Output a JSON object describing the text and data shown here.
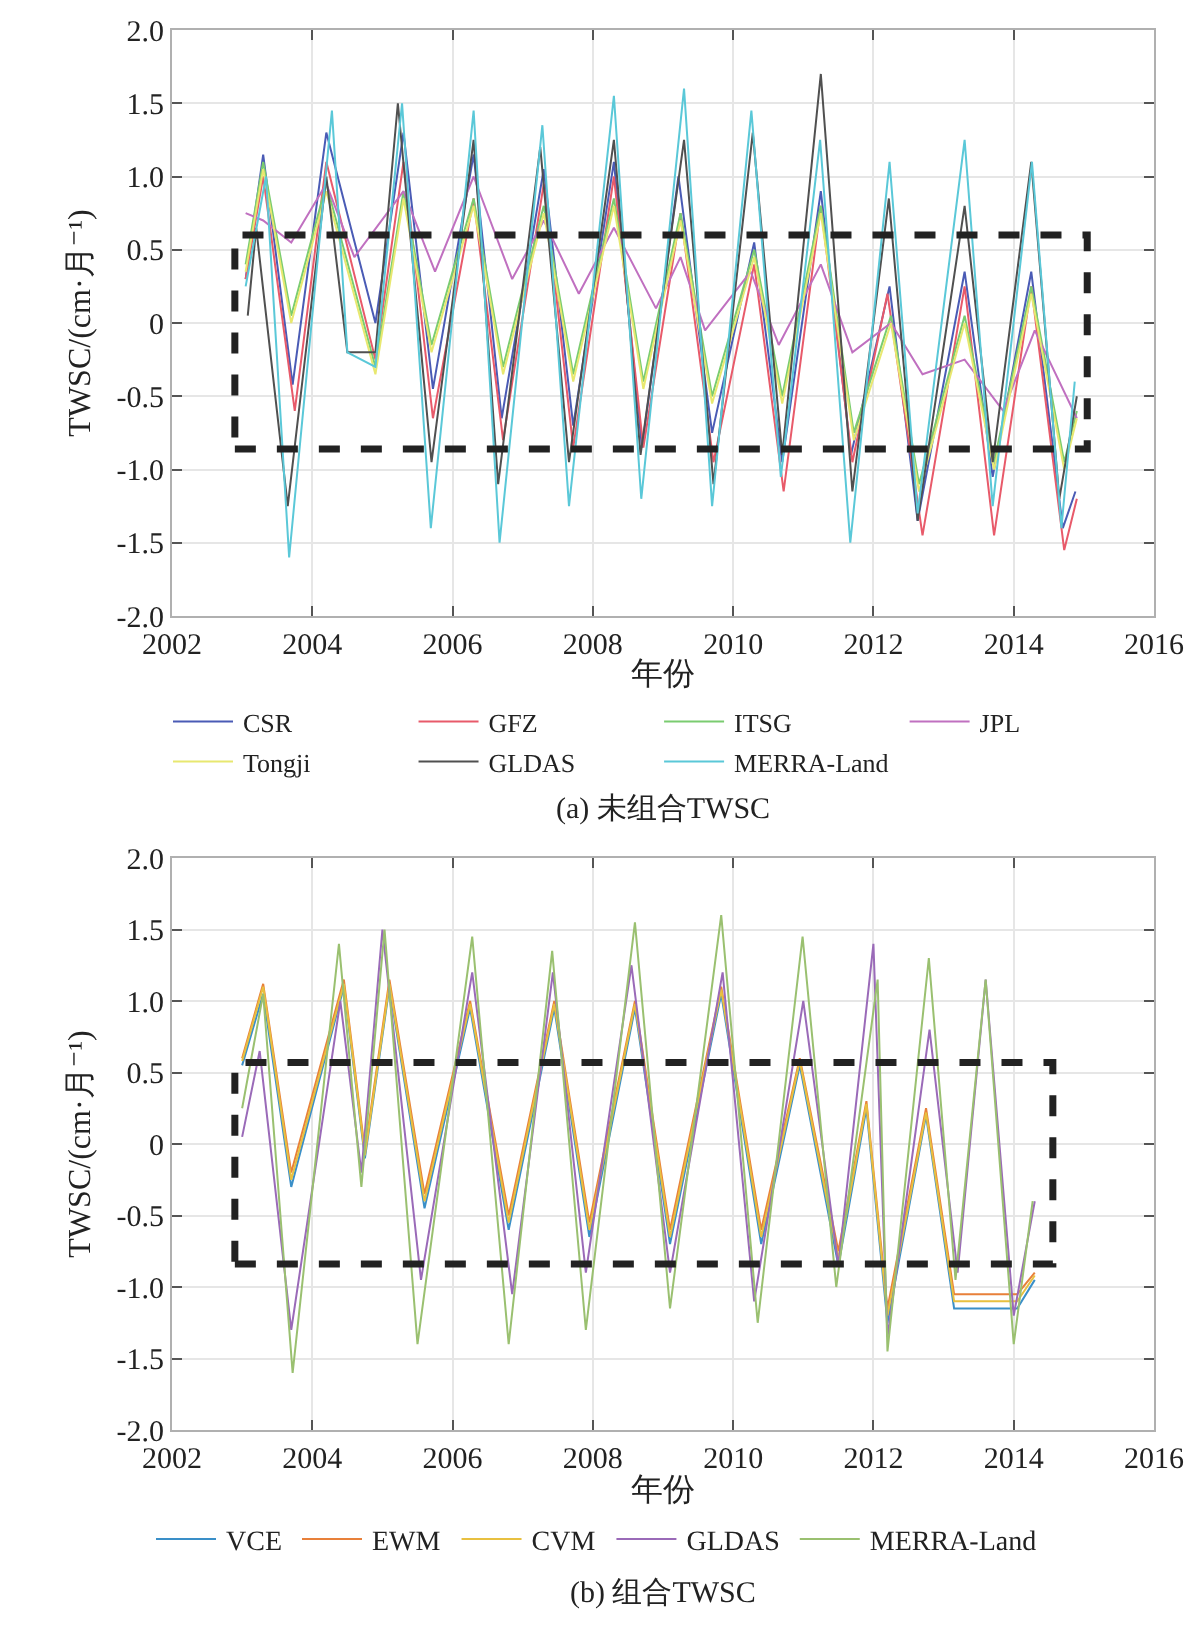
{
  "chart_data": [
    {
      "type": "line",
      "xlabel": "年份",
      "ylabel": "TWSC/(cm·月⁻¹)",
      "annotations": [
        "(a) 未组合TWSC"
      ],
      "xlim": [
        2002,
        2016
      ],
      "ylim": [
        -2,
        2
      ],
      "xticks": [
        2002,
        2004,
        2006,
        2008,
        2010,
        2012,
        2014,
        2016
      ],
      "yticks": [
        {
          "value": 2,
          "label": "2.0"
        },
        {
          "value": 1.5,
          "label": "1.5"
        },
        {
          "value": 1,
          "label": "1.0"
        },
        {
          "value": 0.5,
          "label": "0.5"
        },
        0,
        {
          "value": -0.5,
          "label": "-0.5"
        },
        {
          "value": -1,
          "label": "-1.0"
        },
        {
          "value": -1.5,
          "label": "-1.5"
        },
        {
          "value": -2,
          "label": "-2.0"
        }
      ],
      "grid": true,
      "legend": "bottom",
      "series": [
        {
          "name": "CSR",
          "color": "#4a5bb5",
          "x": [
            2003.05,
            2003.3,
            2003.72,
            2004.2,
            2004.9,
            2005.3,
            2005.72,
            2006.3,
            2006.7,
            2007.3,
            2007.72,
            2008.3,
            2008.7,
            2009.22,
            2009.7,
            2010.3,
            2010.7,
            2011.25,
            2011.68,
            2012.23,
            2012.63,
            2013.3,
            2013.7,
            2014.25,
            2014.7,
            2014.88
          ],
          "values": [
            0.3,
            1.15,
            -0.42,
            1.3,
            0,
            1.3,
            -0.45,
            1.15,
            -0.65,
            1.05,
            -0.7,
            1.1,
            -0.85,
            1,
            -0.75,
            0.55,
            -0.95,
            0.9,
            -0.9,
            0.25,
            -1.35,
            0.35,
            -1.05,
            0.35,
            -1.4,
            -1.15
          ]
        },
        {
          "name": "GFZ",
          "color": "#e85a6a",
          "x": [
            2003.05,
            2003.3,
            2003.75,
            2004.2,
            2004.9,
            2005.3,
            2005.72,
            2006.3,
            2006.72,
            2007.3,
            2007.72,
            2008.3,
            2008.72,
            2009.25,
            2009.72,
            2010.3,
            2010.72,
            2011.25,
            2011.7,
            2012.2,
            2012.7,
            2013.3,
            2013.72,
            2014.25,
            2014.72,
            2014.9
          ],
          "values": [
            0.3,
            1,
            -0.6,
            1.1,
            -0.25,
            1.1,
            -0.65,
            0.85,
            -0.8,
            0.95,
            -0.85,
            1,
            -0.85,
            0.75,
            -0.95,
            0.4,
            -1.15,
            0.8,
            -0.95,
            0.2,
            -1.45,
            0.25,
            -1.45,
            0.25,
            -1.55,
            -1.2
          ]
        },
        {
          "name": "ITSG",
          "color": "#7acc70",
          "x": [
            2003.05,
            2003.3,
            2003.7,
            2004.2,
            2004.9,
            2005.3,
            2005.7,
            2006.3,
            2006.72,
            2007.3,
            2007.72,
            2008.3,
            2008.72,
            2009.25,
            2009.7,
            2010.3,
            2010.7,
            2011.25,
            2011.72,
            2012.25,
            2012.65,
            2013.3,
            2013.72,
            2014.25,
            2014.72,
            2014.9
          ],
          "values": [
            0.4,
            1.1,
            0.05,
            0.95,
            -0.3,
            0.9,
            -0.15,
            0.85,
            -0.3,
            0.8,
            -0.35,
            0.85,
            -0.4,
            0.75,
            -0.5,
            0.5,
            -0.5,
            0.8,
            -0.75,
            0.05,
            -1.1,
            0.05,
            -0.95,
            0.25,
            -0.95,
            -0.6
          ]
        },
        {
          "name": "JPL",
          "color": "#c070c0",
          "x": [
            2003.05,
            2003.3,
            2003.7,
            2004.2,
            2004.6,
            2005.3,
            2005.75,
            2006.3,
            2006.85,
            2007.3,
            2007.8,
            2008.3,
            2008.9,
            2009.25,
            2009.6,
            2010.25,
            2010.65,
            2011.25,
            2011.7,
            2012.25,
            2012.7,
            2013.3,
            2013.85,
            2014.3,
            2014.9
          ],
          "values": [
            0.75,
            0.7,
            0.55,
            0.95,
            0.45,
            0.9,
            0.35,
            1,
            0.3,
            0.7,
            0.2,
            0.65,
            0.1,
            0.45,
            -0.05,
            0.35,
            -0.15,
            0.4,
            -0.2,
            0,
            -0.35,
            -0.25,
            -0.6,
            -0.05,
            -0.65
          ]
        },
        {
          "name": "Tongji",
          "color": "#e8e870",
          "x": [
            2003.05,
            2003.3,
            2003.7,
            2004.2,
            2004.9,
            2005.3,
            2005.7,
            2006.3,
            2006.72,
            2007.3,
            2007.72,
            2008.3,
            2008.72,
            2009.25,
            2009.7,
            2010.3,
            2010.7,
            2011.25,
            2011.72,
            2012.25,
            2012.65,
            2013.3,
            2013.72,
            2014.25,
            2014.72,
            2014.9
          ],
          "values": [
            0.35,
            1.05,
            0,
            0.9,
            -0.35,
            0.85,
            -0.2,
            0.8,
            -0.35,
            0.75,
            -0.4,
            0.8,
            -0.45,
            0.7,
            -0.55,
            0.45,
            -0.55,
            0.75,
            -0.8,
            0,
            -1.15,
            0,
            -1,
            0.2,
            -1,
            -0.65
          ]
        },
        {
          "name": "GLDAS",
          "color": "#505050",
          "x": [
            2003.08,
            2003.2,
            2003.65,
            2004.2,
            2004.5,
            2004.9,
            2005.22,
            2005.7,
            2006.3,
            2006.65,
            2007.25,
            2007.66,
            2008.3,
            2008.68,
            2009.3,
            2009.72,
            2010.28,
            2010.7,
            2011.25,
            2011.7,
            2012.22,
            2012.63,
            2013.3,
            2013.7,
            2014.25,
            2014.65,
            2014.9
          ],
          "values": [
            0.05,
            0.65,
            -1.25,
            1,
            -0.2,
            -0.2,
            1.5,
            -0.95,
            1.25,
            -1.1,
            1.2,
            -0.95,
            1.25,
            -0.9,
            1.25,
            -1.1,
            1.3,
            -0.9,
            1.7,
            -1.15,
            0.85,
            -1.35,
            0.8,
            -0.95,
            1.1,
            -1.2,
            -0.5
          ]
        },
        {
          "name": "MERRA-Land",
          "color": "#5ac8d8",
          "x": [
            2003.05,
            2003.34,
            2003.67,
            2004.28,
            2004.5,
            2004.9,
            2005.28,
            2005.69,
            2006.3,
            2006.67,
            2007.28,
            2007.66,
            2008.3,
            2008.69,
            2009.3,
            2009.7,
            2010.26,
            2010.68,
            2011.24,
            2011.67,
            2012.23,
            2012.63,
            2013.3,
            2013.7,
            2014.26,
            2014.68,
            2014.87
          ],
          "values": [
            0.25,
            1,
            -1.6,
            1.45,
            -0.2,
            -0.3,
            1.5,
            -1.4,
            1.45,
            -1.5,
            1.35,
            -1.25,
            1.55,
            -1.2,
            1.6,
            -1.25,
            1.45,
            -1.05,
            1.25,
            -1.5,
            1.1,
            -1.3,
            1.25,
            -1.25,
            1.1,
            -1.4,
            -0.4
          ]
        }
      ]
    },
    {
      "type": "line",
      "xlabel": "年份",
      "ylabel": "TWSC/(cm·月⁻¹)",
      "annotations": [
        "(b) 组合TWSC"
      ],
      "xlim": [
        2002,
        2016
      ],
      "ylim": [
        -2,
        2
      ],
      "xticks": [
        2002,
        2004,
        2006,
        2008,
        2010,
        2012,
        2014,
        2016
      ],
      "yticks": [
        {
          "value": 2,
          "label": "2.0"
        },
        {
          "value": 1.5,
          "label": "1.5"
        },
        {
          "value": 1,
          "label": "1.0"
        },
        {
          "value": 0.5,
          "label": "0.5"
        },
        0,
        {
          "value": -0.5,
          "label": "-0.5"
        },
        {
          "value": -1,
          "label": "-1.0"
        },
        {
          "value": -1.5,
          "label": "-1.5"
        },
        {
          "value": -2,
          "label": "-2.0"
        }
      ],
      "grid": true,
      "legend": "bottom",
      "series": [
        {
          "name": "VCE",
          "color": "#3a8fc8",
          "x": [
            2003.0,
            2003.3,
            2003.7,
            2004.45,
            2004.75,
            2005.1,
            2005.6,
            2006.25,
            2006.8,
            2007.45,
            2007.95,
            2008.6,
            2009.1,
            2009.83,
            2010.4,
            2010.95,
            2011.5,
            2011.9,
            2012.2,
            2012.75,
            2013.15,
            2014.05,
            2014.3
          ],
          "values": [
            0.55,
            1.05,
            -0.3,
            1.1,
            -0.1,
            1.1,
            -0.45,
            0.95,
            -0.6,
            0.95,
            -0.65,
            0.95,
            -0.7,
            1.05,
            -0.7,
            0.55,
            -0.85,
            0.25,
            -1.25,
            0.2,
            -1.15,
            -1.15,
            -0.95
          ]
        },
        {
          "name": "EWM",
          "color": "#e8803a",
          "x": [
            2003.0,
            2003.3,
            2003.7,
            2004.45,
            2004.75,
            2005.1,
            2005.6,
            2006.25,
            2006.8,
            2007.45,
            2007.95,
            2008.6,
            2009.1,
            2009.83,
            2010.4,
            2010.95,
            2011.5,
            2011.9,
            2012.2,
            2012.75,
            2013.15,
            2014.05,
            2014.3
          ],
          "values": [
            0.6,
            1.12,
            -0.2,
            1.15,
            -0.05,
            1.15,
            -0.35,
            1,
            -0.5,
            1,
            -0.55,
            1,
            -0.6,
            1.1,
            -0.6,
            0.6,
            -0.75,
            0.3,
            -1.15,
            0.25,
            -1.05,
            -1.05,
            -0.9
          ]
        },
        {
          "name": "CVM",
          "color": "#e8c040",
          "x": [
            2003.0,
            2003.3,
            2003.7,
            2004.45,
            2004.75,
            2005.1,
            2005.6,
            2006.25,
            2006.8,
            2007.45,
            2007.95,
            2008.6,
            2009.1,
            2009.83,
            2010.4,
            2010.95,
            2011.5,
            2011.9,
            2012.2,
            2012.75,
            2013.15,
            2014.05,
            2014.3
          ],
          "values": [
            0.58,
            1.1,
            -0.25,
            1.12,
            -0.08,
            1.12,
            -0.4,
            0.98,
            -0.55,
            0.98,
            -0.6,
            0.98,
            -0.65,
            1.08,
            -0.65,
            0.58,
            -0.8,
            0.28,
            -1.2,
            0.22,
            -1.1,
            -1.1,
            -0.92
          ]
        },
        {
          "name": "GLDAS",
          "color": "#9a6ab8",
          "x": [
            2003.0,
            2003.25,
            2003.7,
            2004.4,
            2004.7,
            2005.0,
            2005.55,
            2006.28,
            2006.85,
            2007.43,
            2007.9,
            2008.55,
            2009.1,
            2009.85,
            2010.3,
            2011.0,
            2011.5,
            2012.0,
            2012.2,
            2012.8,
            2013.2,
            2013.6,
            2014.0,
            2014.3
          ],
          "values": [
            0.05,
            0.65,
            -1.3,
            1,
            -0.2,
            1.5,
            -0.95,
            1.2,
            -1.05,
            1.2,
            -0.9,
            1.25,
            -0.9,
            1.2,
            -1.1,
            1,
            -0.85,
            1.4,
            -1.35,
            0.8,
            -0.9,
            1.15,
            -1.2,
            -0.4
          ]
        },
        {
          "name": "MERRA-Land",
          "color": "#9ac070",
          "x": [
            2003.0,
            2003.3,
            2003.72,
            2004.38,
            2004.7,
            2005.03,
            2005.5,
            2006.28,
            2006.8,
            2007.42,
            2007.9,
            2008.6,
            2009.1,
            2009.83,
            2010.35,
            2010.99,
            2011.47,
            2012.06,
            2012.2,
            2012.79,
            2013.17,
            2013.6,
            2014.0,
            2014.27
          ],
          "values": [
            0.25,
            1.05,
            -1.6,
            1.4,
            -0.3,
            1.5,
            -1.4,
            1.45,
            -1.4,
            1.35,
            -1.3,
            1.55,
            -1.15,
            1.6,
            -1.25,
            1.45,
            -1,
            1.15,
            -1.45,
            1.3,
            -0.95,
            1.15,
            -1.4,
            -0.4
          ]
        }
      ]
    }
  ]
}
